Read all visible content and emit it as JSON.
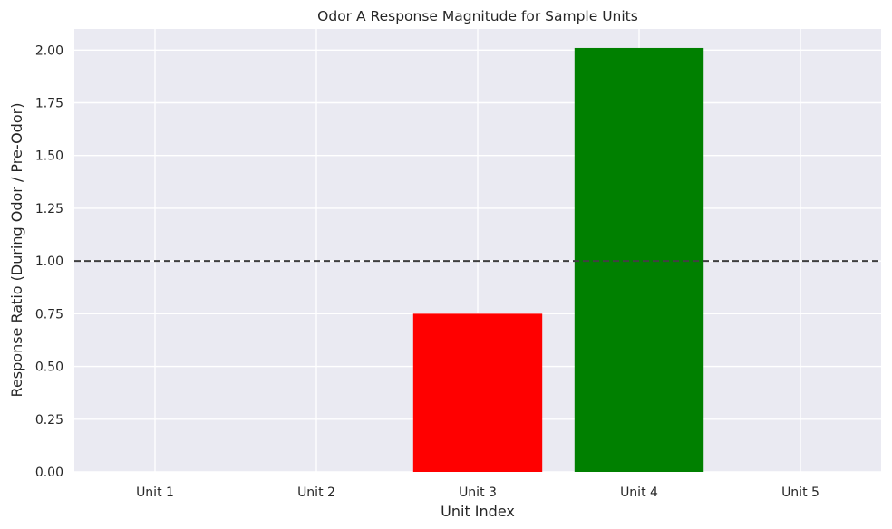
{
  "chart_data": {
    "type": "bar",
    "title": "Odor A Response Magnitude for Sample Units",
    "xlabel": "Unit Index",
    "ylabel": "Response Ratio (During Odor / Pre-Odor)",
    "categories": [
      "Unit 1",
      "Unit 2",
      "Unit 3",
      "Unit 4",
      "Unit 5"
    ],
    "values": [
      0,
      0,
      0.75,
      2.01,
      0
    ],
    "bar_colors": [
      "#808080",
      "#808080",
      "#ff0000",
      "#008000",
      "#808080"
    ],
    "ylim": [
      0,
      2.1
    ],
    "yticks": [
      0.0,
      0.25,
      0.5,
      0.75,
      1.0,
      1.25,
      1.5,
      1.75,
      2.0
    ],
    "ytick_labels": [
      "0.00",
      "0.25",
      "0.50",
      "0.75",
      "1.00",
      "1.25",
      "1.50",
      "1.75",
      "2.00"
    ],
    "reference_line": {
      "y": 1.0,
      "style": "dashed",
      "color": "#404040"
    },
    "grid": true,
    "background": "#eaeaf2"
  }
}
